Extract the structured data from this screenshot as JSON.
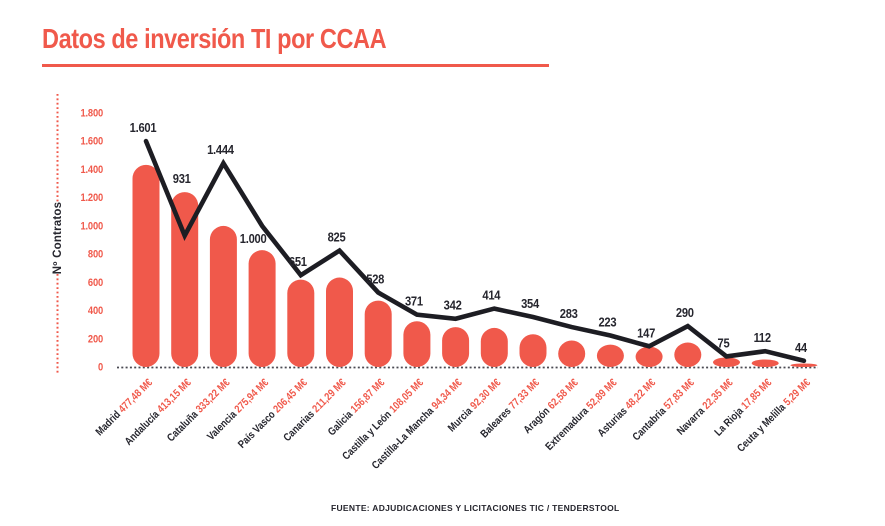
{
  "theme": {
    "accent": "#f0594b",
    "ink": "#26262e",
    "line_color": "#1d1d23",
    "background": "#ffffff",
    "axis_dot_color": "#4a4a52"
  },
  "footer": {
    "source": "FUENTE: ADJUDICACIONES Y LICITACIONES TIC / TENDERSTOOL"
  },
  "chart_data": {
    "type": "bar+line combo",
    "title": "Datos de inversión TI por CCAA",
    "ylabel": "Nº Contratos",
    "xlabel": "",
    "ylim": [
      0,
      1800
    ],
    "y_tick_step": 200,
    "y_ticks": [
      "0",
      "200",
      "400",
      "600",
      "800",
      "1.000",
      "1.200",
      "1.400",
      "1.600",
      "1.800"
    ],
    "grid": "none",
    "legend": "none",
    "bar_value_axis_scale": 3,
    "categories": [
      "Madrid",
      "Andalucía",
      "Cataluña",
      "Valencia",
      "País Vasco",
      "Canarias",
      "Galicia",
      "Castilla y León",
      "Castilla-La Mancha",
      "Murcia",
      "Baleares",
      "Aragón",
      "Extremadura",
      "Asturias",
      "Cantabria",
      "Navarra",
      "La Rioja",
      "Ceuta y Melilla"
    ],
    "series": [
      {
        "name": "Inversión TI",
        "type": "bar",
        "unit": "M€",
        "color": "#f0594b",
        "values": [
          477.48,
          413.15,
          333.22,
          275.94,
          206.45,
          211.29,
          156.87,
          108.05,
          94.34,
          92.3,
          77.33,
          62.58,
          52.89,
          48.22,
          57.83,
          22.35,
          17.85,
          5.29
        ],
        "labels": [
          "477,48 M€",
          "413,15 M€",
          "333,22 M€",
          "275,94 M€",
          "206,45 M€",
          "211,29 M€",
          "156,87 M€",
          "108,05 M€",
          "94,34 M€",
          "92,30 M€",
          "77,33 M€",
          "62,58 M€",
          "52,89 M€",
          "48,22 M€",
          "57,83 M€",
          "22,35 M€",
          "17,85 M€",
          "5,29 M€"
        ]
      },
      {
        "name": "Nº Contratos",
        "type": "line",
        "color": "#1d1d23",
        "values": [
          1601,
          931,
          1444,
          1000,
          651,
          825,
          528,
          371,
          342,
          414,
          354,
          283,
          223,
          147,
          290,
          75,
          112,
          44
        ],
        "labels": [
          "1.601",
          "931",
          "1.444",
          "1.000",
          "651",
          "825",
          "528",
          "371",
          "342",
          "414",
          "354",
          "283",
          "223",
          "147",
          "290",
          "75",
          "112",
          "44"
        ]
      }
    ]
  }
}
